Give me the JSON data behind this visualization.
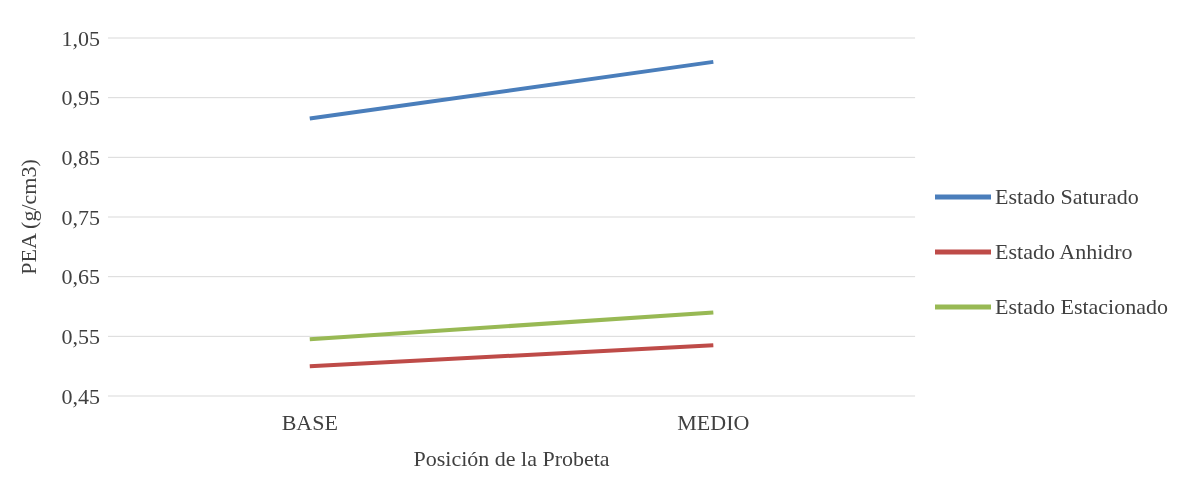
{
  "chart_data": {
    "type": "line",
    "xlabel": "Posición de la Probeta",
    "ylabel": "PEA (g/cm3)",
    "categories": [
      "BASE",
      "MEDIO"
    ],
    "series": [
      {
        "name": "Estado Saturado",
        "color": "#4a7ebb",
        "values": [
          0.915,
          1.01
        ]
      },
      {
        "name": "Estado Anhidro",
        "color": "#be4b48",
        "values": [
          0.5,
          0.535
        ]
      },
      {
        "name": "Estado Estacionado",
        "color": "#98b954",
        "values": [
          0.545,
          0.59
        ]
      }
    ],
    "ylim": [
      0.45,
      1.05
    ],
    "yticks": [
      {
        "value": 0.45,
        "label": "0,45"
      },
      {
        "value": 0.55,
        "label": "0,55"
      },
      {
        "value": 0.65,
        "label": "0,65"
      },
      {
        "value": 0.75,
        "label": "0,75"
      },
      {
        "value": 0.85,
        "label": "0,85"
      },
      {
        "value": 0.95,
        "label": "0,95"
      },
      {
        "value": 1.05,
        "label": "1,05"
      }
    ],
    "grid": "y",
    "legend": "right",
    "marker": "none"
  }
}
